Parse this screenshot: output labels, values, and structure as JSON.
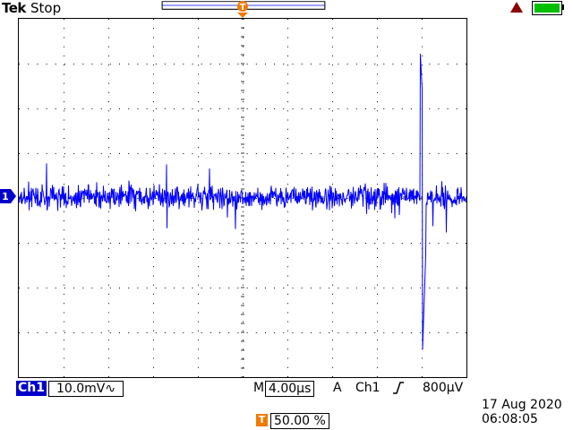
{
  "header": {
    "brand": "Tek",
    "acquisition_state": "Stop",
    "trigger_marker_label": "T",
    "battery_level": 1.0,
    "warning_icon": "warning-triangle-icon"
  },
  "display": {
    "divisions_x": 10,
    "divisions_y": 8,
    "grid_color": "#000000",
    "trace_color": "#0000ff",
    "channel_marker_label": "1"
  },
  "footer": {
    "channel": "Ch1",
    "vertical_scale": "10.0mV",
    "coupling_icon": "ac-coupling-icon",
    "timebase_prefix": "M",
    "timebase": "4.00µs",
    "trigger_mode": "A",
    "trigger_source": "Ch1",
    "trigger_slope_icon": "rising-edge-icon",
    "trigger_level": "800µV",
    "trigger_position_label": "T",
    "trigger_position": "50.00 %",
    "date": "17 Aug 2020",
    "time": "06:08:05"
  },
  "colors": {
    "accent_orange": "#f07a00",
    "channel_blue": "#0000cc"
  }
}
